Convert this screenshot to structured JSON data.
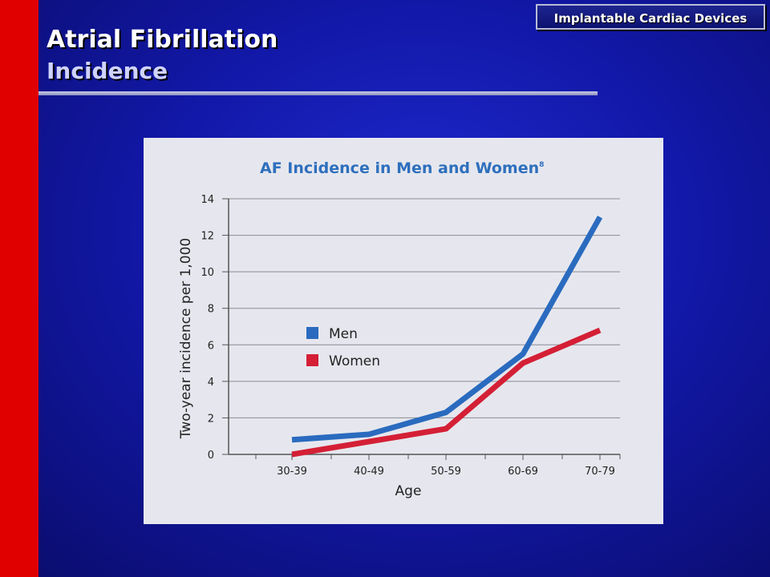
{
  "slide": {
    "badge": "Implantable Cardiac Devices",
    "title": "Atrial Fibrillation",
    "subtitle": "Incidence"
  },
  "colors": {
    "men": "#2a6bbf",
    "women": "#d41f35",
    "chart_title": "#2e6fbd"
  },
  "chart_data": {
    "type": "line",
    "title": "AF Incidence in Men and Women",
    "title_superscript": "8",
    "xlabel": "Age",
    "ylabel": "Two-year incidence per 1,000",
    "categories": [
      "30-39",
      "40-49",
      "50-59",
      "60-69",
      "70-79"
    ],
    "ylim": [
      0,
      14
    ],
    "yticks": [
      0,
      2,
      4,
      6,
      8,
      10,
      12,
      14
    ],
    "grid": true,
    "legend_position": "center-left",
    "series": [
      {
        "name": "Men",
        "values": [
          0.8,
          1.1,
          2.3,
          5.5,
          13.0
        ]
      },
      {
        "name": "Women",
        "values": [
          0.0,
          0.7,
          1.4,
          5.0,
          6.8
        ]
      }
    ]
  }
}
